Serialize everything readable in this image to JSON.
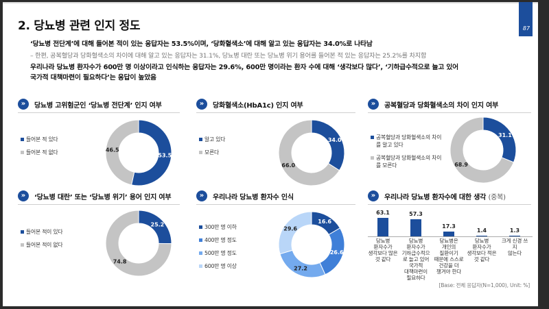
{
  "page": {
    "title": "2. 당뇨병 관련 인지 정도",
    "page_number": "87",
    "summary": [
      "‘당뇨병 전단계’에 대해 들어본 적이 있는 응답자는 53.5%이며, ‘당화혈색소’에 대해 알고 있는 응답자는 34.0%로 나타남",
      "–  한편, 공복혈당과 당화혈색소의 차이에 대해 알고 있는 응답자는 31.1%, 당뇨병 대란 또는 당뇨병 위기 용어를 들어본 적 있는 응답자는 25.2%를 차지함",
      "우리나라 당뇨병 환자수가 600만 명 이상이라고 인식하는 응답자는 29.6%, 600만 명이라는 환자 수에 대해 ‘생각보다 많다’, ‘기하급수적으로 늘고 있어",
      "국가적 대책마련이 필요하다’는 응답이 높았음"
    ],
    "base_note": "[Base: 전체 응답자(N=1,000), Unit: %]"
  },
  "colors": {
    "primary": "#1c4e9c",
    "gray": "#c4c4c4",
    "blue2": "#3f7fd8",
    "blue3": "#74aaee",
    "blue4": "#b9d6f8"
  },
  "chart_data": [
    {
      "type": "pie",
      "title": "당뇨병 고위험군인 ‘당뇨병 전단계’ 인지 여부",
      "categories": [
        "들어본 적 있다",
        "들어본 적 없다"
      ],
      "values": [
        53.5,
        46.5
      ],
      "labels": [
        "53.5",
        "46.5"
      ],
      "colors": [
        "#1c4e9c",
        "#c4c4c4"
      ],
      "legend": "left"
    },
    {
      "type": "pie",
      "title": "당화혈색소(HbA1c) 인지 여부",
      "categories": [
        "알고 있다",
        "모른다"
      ],
      "values": [
        34.0,
        66.0
      ],
      "labels": [
        "34.0",
        "66.0"
      ],
      "colors": [
        "#1c4e9c",
        "#c4c4c4"
      ],
      "legend": "left"
    },
    {
      "type": "pie",
      "title": "공복혈당과 당화혈색소의 차이 인지 여부",
      "categories": [
        "공복혈당과 당화혈색소의 차이를 알고 있다",
        "공복혈당과 당화혈색소의 차이를 모른다"
      ],
      "values": [
        31.1,
        68.9
      ],
      "labels": [
        "31.1",
        "68.9"
      ],
      "colors": [
        "#1c4e9c",
        "#c4c4c4"
      ],
      "legend": "left"
    },
    {
      "type": "pie",
      "title": "‘당뇨병 대란’ 또는 ‘당뇨병 위기’ 용어 인지 여부",
      "categories": [
        "들어본 적이 있다",
        "들어본 적이 없다"
      ],
      "values": [
        25.2,
        74.8
      ],
      "labels": [
        "25.2",
        "74.8"
      ],
      "colors": [
        "#1c4e9c",
        "#c4c4c4"
      ],
      "legend": "left"
    },
    {
      "type": "pie",
      "title": "우리나라 당뇨병 환자수 인식",
      "categories": [
        "300만 명 이하",
        "400만 명 정도",
        "500만 명 정도",
        "600만 명 이상"
      ],
      "values": [
        16.6,
        26.6,
        27.2,
        29.6
      ],
      "labels": [
        "16.6",
        "26.6",
        "27.2",
        "29.6"
      ],
      "colors": [
        "#1c4e9c",
        "#3f7fd8",
        "#74aaee",
        "#b9d6f8"
      ],
      "legend": "left"
    },
    {
      "type": "bar",
      "title": "우리나라 당뇨병 환자수에 대한 생각",
      "subtitle": "(중복)",
      "categories": [
        "당뇨병 환자수가 생각보다 많은 것 같다",
        "당뇨병 환자수가 기하급수적으로 늘고 있어 국가적 대책마련이 필요하다",
        "당뇨병은 개인의 질환이기 때문에 스스로 건강을 더 챙겨야 한다",
        "당뇨병 환자수가 생각보다 적은 것 같다",
        "크게 신경 쓰지 않는다"
      ],
      "values": [
        63.1,
        57.3,
        17.3,
        1.4,
        1.3
      ],
      "labels": [
        "63.1",
        "57.3",
        "17.3",
        "1.4",
        "1.3"
      ],
      "ylim": [
        0,
        70
      ]
    }
  ]
}
